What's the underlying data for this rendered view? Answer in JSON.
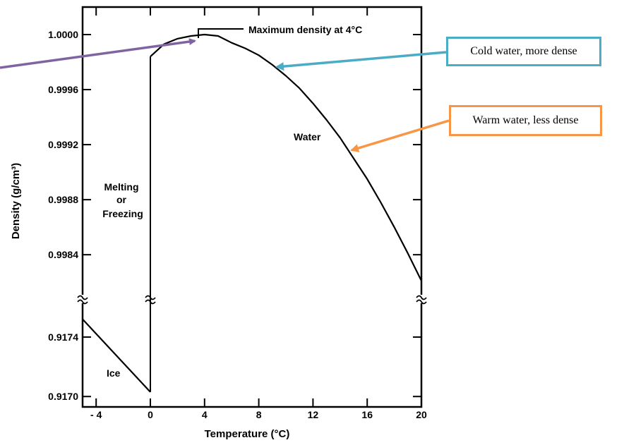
{
  "colors": {
    "background": "#ffffff",
    "axis": "#000000",
    "cold_arrow": "#4bacc6",
    "warm_arrow": "#f79646",
    "max_arrow": "#8064a2"
  },
  "chart_data": {
    "type": "line",
    "xlabel": "Temperature (°C)",
    "ylabel": "Density (g/cm³)",
    "xlim": [
      -5,
      20
    ],
    "x_ticks": [
      {
        "value": -4,
        "label": "- 4"
      },
      {
        "value": 0,
        "label": "0"
      },
      {
        "value": 4,
        "label": "4"
      },
      {
        "value": 8,
        "label": "8"
      },
      {
        "value": 12,
        "label": "12"
      },
      {
        "value": 16,
        "label": "16"
      },
      {
        "value": 20,
        "label": "20"
      }
    ],
    "y_axis_break": true,
    "y_upper_range": [
      0.99816,
      1.0002
    ],
    "y_lower_range": [
      0.91693,
      0.91758
    ],
    "y_ticks_upper": [
      {
        "value": 1.0,
        "label": "1.0000"
      },
      {
        "value": 0.9996,
        "label": "0.9996"
      },
      {
        "value": 0.9992,
        "label": "0.9992"
      },
      {
        "value": 0.9988,
        "label": "0.9988"
      },
      {
        "value": 0.9984,
        "label": "0.9984"
      }
    ],
    "y_ticks_lower": [
      {
        "value": 0.9174,
        "label": "0.9174"
      },
      {
        "value": 0.917,
        "label": "0.9170"
      }
    ],
    "series": [
      {
        "region": "lower",
        "x": [
          -5,
          0
        ],
        "y": [
          0.91752,
          0.91703
        ]
      },
      {
        "region": "upper",
        "x": [
          0,
          1,
          2,
          3,
          4,
          5,
          6,
          7,
          8,
          9,
          10,
          11,
          12,
          13,
          14,
          15,
          16,
          17,
          18,
          19,
          20
        ],
        "y": [
          0.99984,
          0.99993,
          0.99997,
          0.99999,
          1.0,
          0.99999,
          0.99994,
          0.9999,
          0.99985,
          0.99978,
          0.9997,
          0.99961,
          0.9995,
          0.99938,
          0.99925,
          0.9991,
          0.99895,
          0.99878,
          0.9986,
          0.99841,
          0.99821
        ]
      }
    ],
    "annotations": [
      {
        "text": "Maximum density at 4°C"
      },
      {
        "text": "Water"
      },
      {
        "text": "Melting"
      },
      {
        "text": "or"
      },
      {
        "text": "Freezing"
      },
      {
        "text": "Ice"
      }
    ]
  },
  "callouts": {
    "cold": "Cold water, more dense",
    "warm": "Warm water, less dense"
  }
}
